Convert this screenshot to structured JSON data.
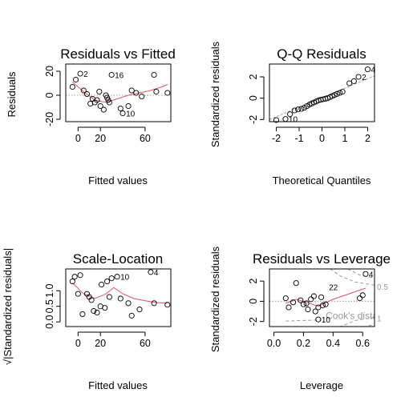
{
  "colors": {
    "smoother": "#DF536B",
    "reference": "#999999",
    "points": "#000000"
  },
  "chart_data": [
    {
      "type": "scatter",
      "title": "Residuals vs Fitted",
      "xlabel": "Fitted values",
      "ylabel": "Residuals",
      "xlim": [
        -11,
        83
      ],
      "ylim": [
        -22,
        26
      ],
      "xticks": [
        0,
        20,
        60
      ],
      "yticks": [
        -20,
        0,
        20
      ],
      "points": [
        [
          -5,
          7
        ],
        [
          -2,
          13
        ],
        [
          2,
          18
        ],
        [
          5,
          4
        ],
        [
          8,
          1
        ],
        [
          11,
          -7
        ],
        [
          13,
          -3
        ],
        [
          15,
          -6
        ],
        [
          17,
          -4
        ],
        [
          20,
          -9
        ],
        [
          19,
          3
        ],
        [
          25,
          0
        ],
        [
          26,
          -2
        ],
        [
          27,
          -4
        ],
        [
          23,
          -12
        ],
        [
          28,
          -6
        ],
        [
          30,
          17
        ],
        [
          38,
          -11
        ],
        [
          40,
          -15
        ],
        [
          45,
          -9
        ],
        [
          48,
          4
        ],
        [
          52,
          2
        ],
        [
          57,
          -1
        ],
        [
          68,
          17
        ],
        [
          70,
          3
        ],
        [
          80,
          2
        ]
      ],
      "labels": [
        {
          "text": "2",
          "x": 2,
          "y": 18
        },
        {
          "text": "16",
          "x": 30,
          "y": 17
        },
        {
          "text": "10",
          "x": 40,
          "y": -15
        }
      ],
      "smoother": [
        [
          -5,
          11
        ],
        [
          5,
          3
        ],
        [
          15,
          -4
        ],
        [
          25,
          -6
        ],
        [
          35,
          -3
        ],
        [
          45,
          0
        ],
        [
          55,
          2
        ],
        [
          65,
          4
        ],
        [
          75,
          7
        ],
        [
          80,
          9
        ]
      ],
      "reference_y": 0
    },
    {
      "type": "scatter",
      "title": "Q-Q Residuals",
      "xlabel": "Theoretical Quantiles",
      "ylabel": "Standardized residuals",
      "xlim": [
        -2.3,
        2.3
      ],
      "ylim": [
        -2.2,
        3.2
      ],
      "xticks": [
        -2,
        -1,
        0,
        1,
        2
      ],
      "yticks": [
        -2,
        0,
        2
      ],
      "points": [
        [
          -2.0,
          -2.05
        ],
        [
          -1.6,
          -1.95
        ],
        [
          -1.4,
          -1.5
        ],
        [
          -1.2,
          -1.15
        ],
        [
          -1.05,
          -1.05
        ],
        [
          -0.9,
          -1.0
        ],
        [
          -0.78,
          -0.9
        ],
        [
          -0.66,
          -0.75
        ],
        [
          -0.55,
          -0.6
        ],
        [
          -0.45,
          -0.5
        ],
        [
          -0.35,
          -0.4
        ],
        [
          -0.25,
          -0.3
        ],
        [
          -0.15,
          -0.2
        ],
        [
          -0.05,
          -0.15
        ],
        [
          0.05,
          -0.1
        ],
        [
          0.15,
          -0.05
        ],
        [
          0.25,
          0.0
        ],
        [
          0.35,
          0.1
        ],
        [
          0.45,
          0.2
        ],
        [
          0.55,
          0.3
        ],
        [
          0.66,
          0.4
        ],
        [
          0.78,
          0.5
        ],
        [
          0.9,
          0.6
        ],
        [
          1.2,
          1.4
        ],
        [
          1.4,
          1.6
        ],
        [
          1.6,
          2.0
        ],
        [
          2.0,
          2.7
        ]
      ],
      "labels": [
        {
          "text": "10",
          "x": -1.6,
          "y": -1.95
        },
        {
          "text": "2",
          "x": 1.6,
          "y": 2.0
        },
        {
          "text": "4",
          "x": 2.0,
          "y": 2.7
        }
      ],
      "reference_line": [
        [
          -2.3,
          -2.0
        ],
        [
          2.3,
          2.1
        ]
      ]
    },
    {
      "type": "scatter",
      "title": "Scale-Location",
      "xlabel": "Fitted values",
      "ylabel": "√|Standardized residuals|",
      "xlim": [
        -11,
        83
      ],
      "ylim": [
        -0.15,
        1.7
      ],
      "xticks": [
        0,
        20,
        60
      ],
      "yticks": [
        0.0,
        0.5,
        1.0
      ],
      "points": [
        [
          -5,
          1.3
        ],
        [
          -3,
          1.45
        ],
        [
          2,
          1.5
        ],
        [
          0,
          0.9
        ],
        [
          4,
          0.25
        ],
        [
          8,
          0.9
        ],
        [
          10,
          0.8
        ],
        [
          12,
          0.7
        ],
        [
          14,
          0.35
        ],
        [
          17,
          0.3
        ],
        [
          20,
          0.5
        ],
        [
          21,
          1.2
        ],
        [
          24,
          0.45
        ],
        [
          26,
          1.3
        ],
        [
          28,
          0.8
        ],
        [
          30,
          1.4
        ],
        [
          35,
          1.45
        ],
        [
          38,
          0.75
        ],
        [
          45,
          0.6
        ],
        [
          48,
          0.2
        ],
        [
          55,
          0.4
        ],
        [
          65,
          1.6
        ],
        [
          68,
          0.6
        ],
        [
          80,
          0.55
        ]
      ],
      "labels": [
        {
          "text": "10",
          "x": 35,
          "y": 1.45
        },
        {
          "text": "4",
          "x": 65,
          "y": 1.6
        }
      ],
      "smoother": [
        [
          -5,
          1.25
        ],
        [
          5,
          0.9
        ],
        [
          15,
          0.75
        ],
        [
          25,
          0.9
        ],
        [
          32,
          1.1
        ],
        [
          40,
          0.9
        ],
        [
          50,
          0.75
        ],
        [
          60,
          0.68
        ],
        [
          70,
          0.62
        ],
        [
          80,
          0.6
        ]
      ]
    },
    {
      "type": "scatter",
      "title": "Residuals vs Leverage",
      "xlabel": "Leverage",
      "ylabel": "Standardized residuals",
      "xlim": [
        -0.03,
        0.68
      ],
      "ylim": [
        -2.5,
        3.2
      ],
      "xticks": [
        0.0,
        0.2,
        0.4,
        0.6
      ],
      "yticks": [
        -2,
        0,
        2
      ],
      "points": [
        [
          0.08,
          0.3
        ],
        [
          0.1,
          -0.6
        ],
        [
          0.13,
          -0.1
        ],
        [
          0.15,
          1.8
        ],
        [
          0.18,
          0.1
        ],
        [
          0.2,
          -0.3
        ],
        [
          0.22,
          -0.2
        ],
        [
          0.23,
          -0.8
        ],
        [
          0.25,
          0.2
        ],
        [
          0.27,
          0.5
        ],
        [
          0.28,
          -1.0
        ],
        [
          0.3,
          -0.6
        ],
        [
          0.32,
          0.4
        ],
        [
          0.33,
          -0.4
        ],
        [
          0.35,
          -0.3
        ],
        [
          0.3,
          -1.8
        ],
        [
          0.58,
          0.3
        ],
        [
          0.6,
          0.6
        ],
        [
          0.62,
          2.7
        ]
      ],
      "labels": [
        {
          "text": "22",
          "x": 0.35,
          "y": 1.4
        },
        {
          "text": "10",
          "x": 0.3,
          "y": -1.8
        },
        {
          "text": "4",
          "x": 0.62,
          "y": 2.7
        }
      ],
      "smoother": [
        [
          0.08,
          -0.2
        ],
        [
          0.15,
          0.2
        ],
        [
          0.22,
          -0.1
        ],
        [
          0.3,
          -0.5
        ],
        [
          0.4,
          0.2
        ],
        [
          0.5,
          0.7
        ],
        [
          0.62,
          1.3
        ]
      ],
      "reference_y": 0,
      "cooks_labels": [
        "Cook's distance",
        "0.5",
        "1"
      ]
    }
  ]
}
